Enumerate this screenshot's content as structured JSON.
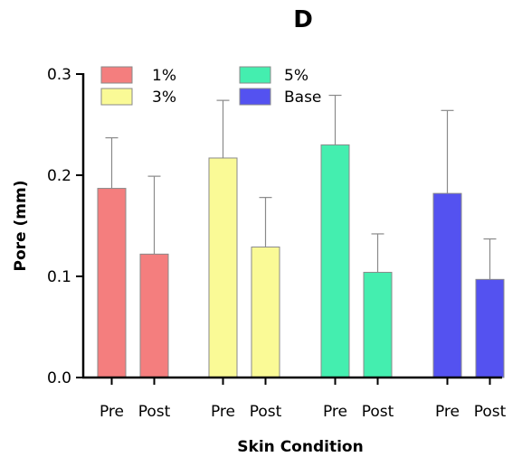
{
  "chart_data": {
    "type": "bar",
    "title": "D",
    "xlabel": "Skin Condition",
    "ylabel": "Pore (mm)",
    "ylim": [
      0,
      0.3
    ],
    "yticks": [
      "0.0",
      "0.1",
      "0.2",
      "0.3"
    ],
    "categories": [
      "Pre",
      "Post"
    ],
    "error_bars": "upper",
    "legend_position": "top-left",
    "series": [
      {
        "name": "1%",
        "color": "#F47E7E",
        "values": [
          0.187,
          0.122
        ],
        "errors": [
          0.05,
          0.077
        ]
      },
      {
        "name": "3%",
        "color": "#FAFA96",
        "values": [
          0.217,
          0.129
        ],
        "errors": [
          0.057,
          0.049
        ]
      },
      {
        "name": "5%",
        "color": "#44EEAF",
        "values": [
          0.23,
          0.104
        ],
        "errors": [
          0.049,
          0.038
        ]
      },
      {
        "name": "Base",
        "color": "#5452F0",
        "values": [
          0.182,
          0.097
        ],
        "errors": [
          0.082,
          0.04
        ]
      }
    ]
  }
}
